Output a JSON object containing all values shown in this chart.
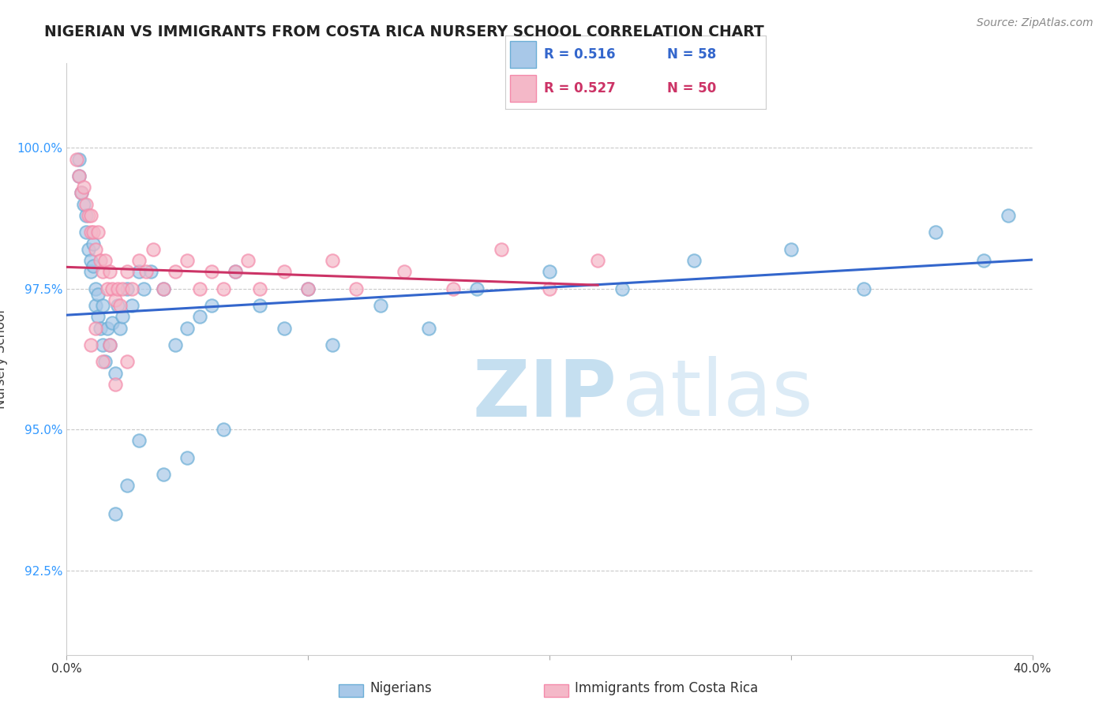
{
  "title": "NIGERIAN VS IMMIGRANTS FROM COSTA RICA NURSERY SCHOOL CORRELATION CHART",
  "source": "Source: ZipAtlas.com",
  "ylabel": "Nursery School",
  "xlim": [
    0.0,
    40.0
  ],
  "ylim": [
    91.0,
    101.5
  ],
  "yticks": [
    92.5,
    95.0,
    97.5,
    100.0
  ],
  "ytick_labels": [
    "92.5%",
    "95.0%",
    "97.5%",
    "100.0%"
  ],
  "legend_r_blue": "R = 0.516",
  "legend_n_blue": "N = 58",
  "legend_r_pink": "R = 0.527",
  "legend_n_pink": "N = 50",
  "blue_color": "#a8c8e8",
  "blue_edge": "#6baed6",
  "pink_color": "#f4b8c8",
  "pink_edge": "#f48aaa",
  "trendline_blue": "#3366cc",
  "trendline_pink": "#cc3366",
  "background_color": "#ffffff",
  "grid_color": "#bbbbbb",
  "nigerians_x": [
    0.5,
    0.5,
    0.6,
    0.7,
    0.8,
    0.8,
    0.9,
    1.0,
    1.0,
    1.1,
    1.1,
    1.2,
    1.2,
    1.3,
    1.3,
    1.4,
    1.5,
    1.5,
    1.6,
    1.7,
    1.8,
    1.9,
    2.0,
    2.1,
    2.2,
    2.3,
    2.5,
    2.7,
    3.0,
    3.2,
    3.5,
    4.0,
    4.5,
    5.0,
    5.5,
    6.0,
    7.0,
    8.0,
    9.0,
    10.0,
    11.0,
    13.0,
    15.0,
    17.0,
    20.0,
    23.0,
    26.0,
    30.0,
    33.0,
    36.0,
    38.0,
    39.0,
    2.0,
    2.5,
    3.0,
    4.0,
    5.0,
    6.5
  ],
  "nigerians_y": [
    99.8,
    99.5,
    99.2,
    99.0,
    98.8,
    98.5,
    98.2,
    98.0,
    97.8,
    97.9,
    98.3,
    97.5,
    97.2,
    97.0,
    97.4,
    96.8,
    96.5,
    97.2,
    96.2,
    96.8,
    96.5,
    96.9,
    96.0,
    97.2,
    96.8,
    97.0,
    97.5,
    97.2,
    97.8,
    97.5,
    97.8,
    97.5,
    96.5,
    96.8,
    97.0,
    97.2,
    97.8,
    97.2,
    96.8,
    97.5,
    96.5,
    97.2,
    96.8,
    97.5,
    97.8,
    97.5,
    98.0,
    98.2,
    97.5,
    98.5,
    98.0,
    98.8,
    93.5,
    94.0,
    94.8,
    94.2,
    94.5,
    95.0
  ],
  "costarica_x": [
    0.4,
    0.5,
    0.6,
    0.7,
    0.8,
    0.9,
    1.0,
    1.0,
    1.1,
    1.2,
    1.3,
    1.4,
    1.5,
    1.6,
    1.7,
    1.8,
    1.9,
    2.0,
    2.1,
    2.2,
    2.3,
    2.5,
    2.7,
    3.0,
    3.3,
    3.6,
    4.0,
    4.5,
    5.0,
    5.5,
    6.0,
    6.5,
    7.0,
    7.5,
    8.0,
    9.0,
    10.0,
    11.0,
    12.0,
    14.0,
    16.0,
    18.0,
    20.0,
    22.0,
    1.0,
    1.2,
    1.5,
    1.8,
    2.0,
    2.5
  ],
  "costarica_y": [
    99.8,
    99.5,
    99.2,
    99.3,
    99.0,
    98.8,
    98.5,
    98.8,
    98.5,
    98.2,
    98.5,
    98.0,
    97.8,
    98.0,
    97.5,
    97.8,
    97.5,
    97.3,
    97.5,
    97.2,
    97.5,
    97.8,
    97.5,
    98.0,
    97.8,
    98.2,
    97.5,
    97.8,
    98.0,
    97.5,
    97.8,
    97.5,
    97.8,
    98.0,
    97.5,
    97.8,
    97.5,
    98.0,
    97.5,
    97.8,
    97.5,
    98.2,
    97.5,
    98.0,
    96.5,
    96.8,
    96.2,
    96.5,
    95.8,
    96.2
  ]
}
